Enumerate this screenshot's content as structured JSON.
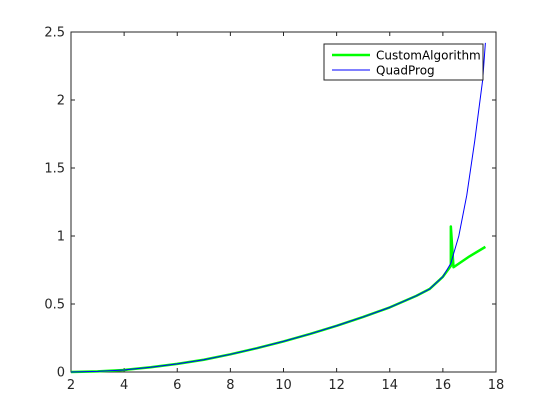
{
  "chart_data": {
    "type": "line",
    "title": "",
    "xlabel": "",
    "ylabel": "",
    "xlim": [
      2,
      18
    ],
    "ylim": [
      0,
      2.5
    ],
    "xticks": [
      "2",
      "4",
      "6",
      "8",
      "10",
      "12",
      "14",
      "16",
      "18"
    ],
    "yticks": [
      "0",
      "0.5",
      "1",
      "1.5",
      "2",
      "2.5"
    ],
    "grid": false,
    "legend_position": "top-right",
    "series": [
      {
        "name": "CustomAlgorithm",
        "color": "#00ff00",
        "x": [
          2,
          3,
          4,
          5,
          6,
          7,
          8,
          9,
          10,
          11,
          12,
          13,
          14,
          15,
          15.5,
          16,
          16.3,
          16.3,
          16.4,
          17.0,
          17.6
        ],
        "y": [
          0.0,
          0.005,
          0.015,
          0.035,
          0.06,
          0.09,
          0.13,
          0.175,
          0.225,
          0.28,
          0.34,
          0.405,
          0.475,
          0.56,
          0.61,
          0.7,
          0.78,
          1.07,
          0.77,
          0.85,
          0.92
        ]
      },
      {
        "name": "QuadProg",
        "color": "#0000ff",
        "x": [
          2,
          3,
          4,
          5,
          6,
          7,
          8,
          9,
          10,
          11,
          12,
          13,
          14,
          15,
          15.5,
          16,
          16.3,
          16.6,
          16.9,
          17.2,
          17.5,
          17.6
        ],
        "y": [
          0.0,
          0.005,
          0.015,
          0.035,
          0.06,
          0.09,
          0.13,
          0.175,
          0.225,
          0.28,
          0.34,
          0.405,
          0.475,
          0.56,
          0.61,
          0.7,
          0.8,
          1.0,
          1.3,
          1.7,
          2.15,
          2.42
        ]
      }
    ]
  }
}
